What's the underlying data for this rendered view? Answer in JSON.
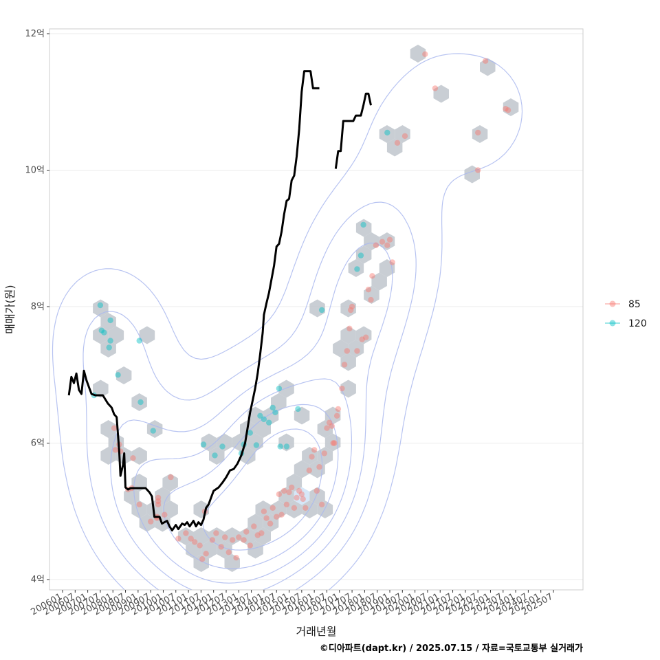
{
  "chart_data": {
    "type": "scatter",
    "xlabel": "거래년월",
    "ylabel": "매매가(원)",
    "caption": "©디아파트(dapt.kr) / 2025.07.15 / 자료=국토교통부 실거래가",
    "x_range": [
      2005.2,
      2026.1
    ],
    "y_range": [
      3.85,
      12.05
    ],
    "x_ticks": [
      "200601",
      "200607",
      "200701",
      "200707",
      "200801",
      "200807",
      "200901",
      "200907",
      "201001",
      "201007",
      "201101",
      "201107",
      "201201",
      "201207",
      "201301",
      "201307",
      "201401",
      "201407",
      "201501",
      "201507",
      "201601",
      "201607",
      "201701",
      "201707",
      "201801",
      "201807",
      "201901",
      "201907",
      "202001",
      "202007",
      "202101",
      "202107",
      "202201",
      "202207",
      "202301",
      "202307",
      "202401",
      "202407",
      "202501",
      "202507"
    ],
    "y_ticks": [
      {
        "value": 4,
        "label": "4억"
      },
      {
        "value": 6,
        "label": "6억"
      },
      {
        "value": 8,
        "label": "8억"
      },
      {
        "value": 10,
        "label": "10억"
      },
      {
        "value": 12,
        "label": "12억"
      }
    ],
    "grid": true,
    "legend_position": "right",
    "colors": {
      "85": "#f8766d",
      "120": "#00bfc4",
      "trend": "#000000",
      "hex": "#bfc6cc",
      "density": "#aab8ee"
    },
    "series": [
      {
        "name": "85",
        "points": [
          [
            2008.05,
            6.22
          ],
          [
            2008.25,
            5.98
          ],
          [
            2008.3,
            5.88
          ],
          [
            2008.1,
            5.9
          ],
          [
            2008.6,
            5.32
          ],
          [
            2008.75,
            5.34
          ],
          [
            2008.8,
            5.78
          ],
          [
            2009.05,
            5.1
          ],
          [
            2009.5,
            4.85
          ],
          [
            2009.75,
            4.92
          ],
          [
            2009.8,
            5.2
          ],
          [
            2009.8,
            5.15
          ],
          [
            2009.8,
            5.1
          ],
          [
            2009.75,
            4.9
          ],
          [
            2010.05,
            4.95
          ],
          [
            2010.3,
            5.5
          ],
          [
            2010.6,
            4.6
          ],
          [
            2010.9,
            4.68
          ],
          [
            2011.1,
            4.6
          ],
          [
            2011.25,
            4.55
          ],
          [
            2011.45,
            4.5
          ],
          [
            2011.55,
            4.3
          ],
          [
            2011.7,
            4.38
          ],
          [
            2011.65,
            5.0
          ],
          [
            2011.95,
            4.58
          ],
          [
            2012.1,
            4.68
          ],
          [
            2012.3,
            4.48
          ],
          [
            2012.45,
            4.62
          ],
          [
            2012.6,
            4.4
          ],
          [
            2012.75,
            4.58
          ],
          [
            2012.9,
            4.32
          ],
          [
            2013.0,
            4.62
          ],
          [
            2013.2,
            4.58
          ],
          [
            2013.3,
            4.7
          ],
          [
            2013.45,
            4.5
          ],
          [
            2013.6,
            4.78
          ],
          [
            2013.75,
            4.65
          ],
          [
            2013.9,
            4.68
          ],
          [
            2014.0,
            5.0
          ],
          [
            2014.1,
            4.9
          ],
          [
            2014.25,
            4.82
          ],
          [
            2014.35,
            5.05
          ],
          [
            2014.5,
            4.92
          ],
          [
            2014.6,
            5.25
          ],
          [
            2014.7,
            4.95
          ],
          [
            2014.8,
            5.3
          ],
          [
            2014.9,
            5.1
          ],
          [
            2015.0,
            5.28
          ],
          [
            2015.1,
            5.35
          ],
          [
            2015.2,
            5.05
          ],
          [
            2015.3,
            5.2
          ],
          [
            2015.4,
            5.3
          ],
          [
            2015.5,
            5.25
          ],
          [
            2015.55,
            5.18
          ],
          [
            2015.65,
            5.05
          ],
          [
            2015.8,
            5.6
          ],
          [
            2015.9,
            5.8
          ],
          [
            2016.0,
            5.9
          ],
          [
            2016.1,
            5.3
          ],
          [
            2016.2,
            5.65
          ],
          [
            2016.3,
            5.1
          ],
          [
            2016.4,
            5.85
          ],
          [
            2016.5,
            6.22
          ],
          [
            2016.6,
            6.3
          ],
          [
            2016.7,
            6.25
          ],
          [
            2016.75,
            6.0
          ],
          [
            2016.8,
            6.0
          ],
          [
            2016.9,
            6.4
          ],
          [
            2016.95,
            6.5
          ],
          [
            2017.1,
            6.8
          ],
          [
            2017.2,
            7.15
          ],
          [
            2017.3,
            7.35
          ],
          [
            2017.4,
            7.68
          ],
          [
            2017.45,
            7.95
          ],
          [
            2017.5,
            8.0
          ],
          [
            2017.7,
            7.35
          ],
          [
            2017.9,
            7.52
          ],
          [
            2018.05,
            7.55
          ],
          [
            2018.15,
            8.25
          ],
          [
            2018.25,
            8.1
          ],
          [
            2018.3,
            8.45
          ],
          [
            2018.45,
            8.9
          ],
          [
            2018.7,
            8.95
          ],
          [
            2018.9,
            8.9
          ],
          [
            2019.0,
            8.98
          ],
          [
            2019.1,
            8.65
          ],
          [
            2019.3,
            10.4
          ],
          [
            2019.6,
            10.5
          ],
          [
            2020.4,
            11.7
          ],
          [
            2020.8,
            11.2
          ],
          [
            2022.5,
            10.55
          ],
          [
            2022.5,
            10.0
          ],
          [
            2022.8,
            11.6
          ],
          [
            2023.6,
            10.9
          ],
          [
            2023.7,
            10.88
          ]
        ]
      },
      {
        "name": "120",
        "points": [
          [
            2007.5,
            8.02
          ],
          [
            2007.55,
            7.65
          ],
          [
            2007.65,
            7.62
          ],
          [
            2007.9,
            7.8
          ],
          [
            2007.9,
            7.5
          ],
          [
            2007.85,
            7.4
          ],
          [
            2008.2,
            7.0
          ],
          [
            2007.25,
            6.7
          ],
          [
            2009.1,
            6.6
          ],
          [
            2009.05,
            7.5
          ],
          [
            2009.6,
            6.18
          ],
          [
            2011.6,
            5.98
          ],
          [
            2012.05,
            5.82
          ],
          [
            2012.35,
            5.95
          ],
          [
            2013.1,
            5.85
          ],
          [
            2013.2,
            5.98
          ],
          [
            2013.45,
            6.15
          ],
          [
            2013.7,
            5.97
          ],
          [
            2013.85,
            6.4
          ],
          [
            2014.0,
            6.35
          ],
          [
            2014.2,
            6.3
          ],
          [
            2014.35,
            6.52
          ],
          [
            2014.45,
            6.45
          ],
          [
            2014.6,
            6.8
          ],
          [
            2014.65,
            5.95
          ],
          [
            2014.9,
            5.95
          ],
          [
            2015.35,
            6.5
          ],
          [
            2016.3,
            7.95
          ],
          [
            2017.7,
            8.55
          ],
          [
            2017.85,
            8.75
          ],
          [
            2017.95,
            9.2
          ],
          [
            2018.9,
            10.55
          ]
        ]
      }
    ],
    "trend_segments": [
      [
        [
          2006.25,
          6.7
        ],
        [
          2006.35,
          6.97
        ],
        [
          2006.45,
          6.88
        ],
        [
          2006.55,
          7.02
        ],
        [
          2006.65,
          6.78
        ],
        [
          2006.75,
          6.72
        ],
        [
          2006.85,
          7.06
        ],
        [
          2006.95,
          6.92
        ],
        [
          2007.05,
          6.82
        ],
        [
          2007.15,
          6.72
        ],
        [
          2007.3,
          6.7
        ],
        [
          2007.6,
          6.7
        ],
        [
          2007.8,
          6.58
        ],
        [
          2007.95,
          6.52
        ],
        [
          2008.05,
          6.42
        ],
        [
          2008.15,
          6.38
        ],
        [
          2008.25,
          5.88
        ],
        [
          2008.3,
          5.52
        ],
        [
          2008.4,
          5.68
        ],
        [
          2008.45,
          5.85
        ],
        [
          2008.5,
          5.35
        ],
        [
          2008.6,
          5.32
        ],
        [
          2008.7,
          5.34
        ],
        [
          2009.3,
          5.34
        ],
        [
          2009.45,
          5.28
        ],
        [
          2009.55,
          5.22
        ],
        [
          2009.65,
          4.92
        ],
        [
          2009.85,
          4.92
        ],
        [
          2009.95,
          4.82
        ],
        [
          2010.15,
          4.86
        ],
        [
          2010.25,
          4.78
        ],
        [
          2010.35,
          4.72
        ],
        [
          2010.5,
          4.8
        ],
        [
          2010.6,
          4.74
        ],
        [
          2010.75,
          4.82
        ],
        [
          2010.85,
          4.8
        ],
        [
          2010.95,
          4.84
        ],
        [
          2011.05,
          4.78
        ],
        [
          2011.2,
          4.86
        ],
        [
          2011.3,
          4.78
        ],
        [
          2011.4,
          4.84
        ],
        [
          2011.5,
          4.8
        ],
        [
          2011.6,
          4.88
        ],
        [
          2011.7,
          5.05
        ],
        [
          2011.8,
          5.1
        ],
        [
          2011.9,
          5.2
        ],
        [
          2012.0,
          5.3
        ],
        [
          2012.2,
          5.35
        ],
        [
          2012.35,
          5.42
        ],
        [
          2012.5,
          5.5
        ],
        [
          2012.65,
          5.6
        ],
        [
          2012.8,
          5.62
        ],
        [
          2012.95,
          5.7
        ],
        [
          2013.1,
          5.82
        ],
        [
          2013.25,
          6.0
        ],
        [
          2013.35,
          6.22
        ],
        [
          2013.45,
          6.45
        ],
        [
          2013.55,
          6.62
        ],
        [
          2013.65,
          6.8
        ],
        [
          2013.75,
          7.02
        ],
        [
          2013.85,
          7.3
        ],
        [
          2013.95,
          7.62
        ],
        [
          2014.0,
          7.88
        ],
        [
          2014.1,
          8.05
        ],
        [
          2014.2,
          8.2
        ],
        [
          2014.3,
          8.4
        ],
        [
          2014.4,
          8.6
        ],
        [
          2014.5,
          8.88
        ],
        [
          2014.6,
          8.92
        ],
        [
          2014.7,
          9.1
        ],
        [
          2014.8,
          9.35
        ],
        [
          2014.9,
          9.55
        ],
        [
          2015.0,
          9.58
        ],
        [
          2015.1,
          9.85
        ],
        [
          2015.2,
          9.92
        ],
        [
          2015.3,
          10.2
        ],
        [
          2015.4,
          10.6
        ],
        [
          2015.5,
          11.15
        ],
        [
          2015.6,
          11.45
        ],
        [
          2015.75,
          11.45
        ],
        [
          2015.85,
          11.45
        ],
        [
          2015.95,
          11.2
        ],
        [
          2016.2,
          11.2
        ]
      ],
      [
        [
          2016.85,
          10.02
        ],
        [
          2016.95,
          10.28
        ],
        [
          2017.05,
          10.28
        ],
        [
          2017.15,
          10.72
        ],
        [
          2017.35,
          10.72
        ],
        [
          2017.55,
          10.72
        ],
        [
          2017.65,
          10.8
        ],
        [
          2017.85,
          10.8
        ],
        [
          2017.95,
          10.95
        ],
        [
          2018.05,
          11.12
        ],
        [
          2018.15,
          11.12
        ],
        [
          2018.25,
          10.95
        ]
      ]
    ]
  }
}
